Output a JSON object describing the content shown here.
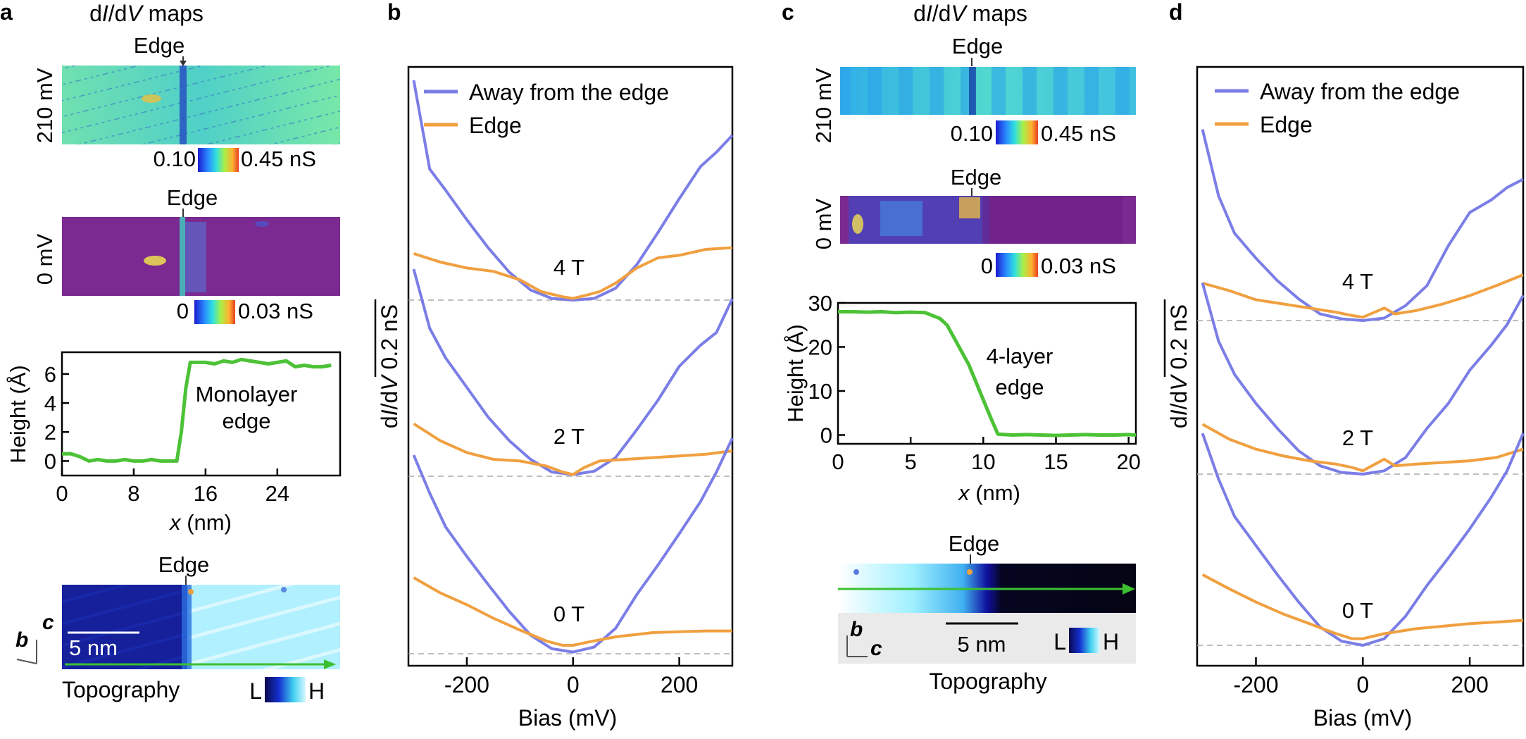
{
  "panel_letters": {
    "a": "a",
    "b": "b",
    "c": "c",
    "d": "d"
  },
  "maps_title": {
    "pre": "d",
    "I1": "I",
    "mid": "/d",
    "V": "V",
    "post": " maps"
  },
  "edge_label": "Edge",
  "panel_a": {
    "map1": {
      "bias_label": "210 mV",
      "cbar_min": "0.10",
      "cbar_max": "0.45 nS"
    },
    "map2": {
      "bias_label": "0 mV",
      "cbar_min": "0",
      "cbar_max": "0.03 nS"
    },
    "height_plot": {
      "ylabel": "Height (Å)",
      "xlabel_var": "x",
      "xlabel_unit": " (nm)",
      "yticks": [
        "0",
        "2",
        "4",
        "6"
      ],
      "xticks": [
        "0",
        "8",
        "16",
        "24"
      ],
      "annotation": [
        "Monolayer",
        "edge"
      ]
    },
    "topo": {
      "scale": "5 nm",
      "axis_b": "b",
      "axis_c": "c",
      "title": "Topography",
      "cbar_L": "L",
      "cbar_H": "H"
    }
  },
  "panel_c": {
    "map1": {
      "bias_label": "210 mV",
      "cbar_min": "0.10",
      "cbar_max": "0.45 nS"
    },
    "map2": {
      "bias_label": "0 mV",
      "cbar_min": "0",
      "cbar_max": "0.03 nS"
    },
    "height_plot": {
      "ylabel": "Height (Å)",
      "xlabel_var": "x",
      "xlabel_unit": " (nm)",
      "yticks": [
        "0",
        "10",
        "20",
        "30"
      ],
      "xticks": [
        "0",
        "5",
        "10",
        "15",
        "20"
      ],
      "annotation": [
        "4-layer",
        "edge"
      ]
    },
    "topo": {
      "scale": "5 nm",
      "axis_b": "b",
      "axis_c": "c",
      "title": "Topography",
      "cbar_L": "L",
      "cbar_H": "H"
    }
  },
  "spectra": {
    "legend": [
      "Away from the edge",
      "Edge"
    ],
    "ylabel": {
      "d": "d",
      "I": "I",
      "mid": "/d",
      "V": "V",
      "scale": " 0.2 nS"
    },
    "xlabel": "Bias (mV)",
    "xticks": [
      "-200",
      "0",
      "200"
    ],
    "field_labels": [
      "4 T",
      "2 T",
      "0 T"
    ],
    "colors": {
      "away": "#7b7ee6",
      "edge": "#f0a040"
    }
  },
  "chart_data": [
    {
      "type": "line",
      "panel": "a",
      "ylabel": "Height (Å)",
      "xlabel": "x (nm)",
      "xlim": [
        0,
        31
      ],
      "ylim": [
        -1,
        7.5
      ],
      "series": [
        {
          "x": [
            0,
            1,
            2,
            3,
            4,
            5,
            6,
            7,
            8,
            9,
            10,
            11,
            12,
            12.8,
            13.3,
            13.8,
            14.3,
            15,
            16,
            17,
            18,
            19,
            20,
            21,
            22,
            23,
            24,
            25,
            26,
            27,
            28,
            29,
            30
          ],
          "y": [
            0.5,
            0.5,
            0.3,
            0,
            0.1,
            0,
            0,
            0.1,
            0,
            0,
            0.1,
            0,
            0,
            0,
            2,
            5,
            6.8,
            6.8,
            6.8,
            6.7,
            6.9,
            6.8,
            7,
            6.9,
            6.8,
            6.7,
            6.8,
            6.9,
            6.5,
            6.6,
            6.5,
            6.5,
            6.6
          ]
        }
      ]
    },
    {
      "type": "line",
      "panel": "c",
      "ylabel": "Height (Å)",
      "xlabel": "x (nm)",
      "xlim": [
        0,
        20.5
      ],
      "ylim": [
        -2,
        30
      ],
      "series": [
        {
          "x": [
            0,
            1,
            2,
            3,
            4,
            5,
            6,
            7,
            7.5,
            8,
            8.5,
            9,
            9.5,
            10,
            10.5,
            11,
            12,
            13,
            14,
            15,
            16,
            17,
            18,
            19,
            20,
            20.5
          ],
          "y": [
            28,
            28,
            27.9,
            28,
            27.8,
            27.9,
            27.8,
            26.5,
            25,
            22,
            19,
            16,
            12,
            8,
            4,
            0.2,
            0,
            0.1,
            0,
            -0.1,
            0,
            0.1,
            0,
            0,
            0.1,
            0
          ]
        }
      ]
    },
    {
      "type": "line",
      "panel": "b",
      "xlabel": "Bias (mV)",
      "xlim": [
        -310,
        300
      ],
      "series": [
        {
          "name": "Away from the edge",
          "field": "4 T",
          "x": [
            -300,
            -270,
            -240,
            -200,
            -160,
            -120,
            -80,
            -40,
            0,
            40,
            80,
            120,
            160,
            200,
            240,
            270,
            300
          ],
          "y": [
            2.6,
            1.55,
            1.3,
            0.95,
            0.62,
            0.33,
            0.12,
            0.02,
            0,
            0.02,
            0.14,
            0.42,
            0.8,
            1.2,
            1.58,
            1.75,
            1.95
          ]
        },
        {
          "name": "Edge",
          "field": "4 T",
          "x": [
            -300,
            -250,
            -200,
            -150,
            -100,
            -60,
            -20,
            0,
            20,
            50,
            80,
            120,
            160,
            200,
            250,
            300
          ],
          "y": [
            0.55,
            0.45,
            0.38,
            0.34,
            0.24,
            0.1,
            0.04,
            0.02,
            0.05,
            0.1,
            0.2,
            0.38,
            0.5,
            0.53,
            0.6,
            0.62
          ]
        },
        {
          "name": "Away from the edge",
          "field": "2 T",
          "x": [
            -300,
            -270,
            -240,
            -200,
            -160,
            -120,
            -80,
            -40,
            0,
            40,
            80,
            120,
            160,
            200,
            240,
            270,
            300
          ],
          "y": [
            2.45,
            1.75,
            1.4,
            1.05,
            0.7,
            0.42,
            0.2,
            0.05,
            0.02,
            0.06,
            0.22,
            0.55,
            0.9,
            1.3,
            1.55,
            1.7,
            2.1
          ]
        },
        {
          "name": "Edge",
          "field": "2 T",
          "x": [
            -300,
            -250,
            -200,
            -150,
            -100,
            -50,
            -20,
            0,
            20,
            50,
            100,
            150,
            200,
            250,
            300
          ],
          "y": [
            0.62,
            0.42,
            0.28,
            0.2,
            0.18,
            0.12,
            0.05,
            0.02,
            0.1,
            0.18,
            0.2,
            0.22,
            0.24,
            0.26,
            0.3
          ]
        },
        {
          "name": "Away from the edge",
          "field": "0 T",
          "x": [
            -300,
            -270,
            -240,
            -200,
            -160,
            -120,
            -80,
            -40,
            0,
            40,
            80,
            120,
            160,
            200,
            240,
            270,
            300
          ],
          "y": [
            2.35,
            1.9,
            1.5,
            1.15,
            0.82,
            0.5,
            0.22,
            0.06,
            0.02,
            0.08,
            0.3,
            0.7,
            1.05,
            1.42,
            1.8,
            2.15,
            2.55
          ]
        },
        {
          "name": "Edge",
          "field": "0 T",
          "x": [
            -300,
            -250,
            -200,
            -150,
            -100,
            -50,
            -20,
            0,
            30,
            80,
            150,
            200,
            250,
            300
          ],
          "y": [
            0.9,
            0.72,
            0.58,
            0.42,
            0.28,
            0.15,
            0.1,
            0.1,
            0.14,
            0.2,
            0.25,
            0.26,
            0.27,
            0.27
          ]
        }
      ]
    },
    {
      "type": "line",
      "panel": "d",
      "xlabel": "Bias (mV)",
      "xlim": [
        -310,
        300
      ],
      "series": [
        {
          "name": "Away from the edge",
          "field": "4 T",
          "x": [
            -300,
            -270,
            -240,
            -200,
            -160,
            -120,
            -80,
            -40,
            0,
            40,
            80,
            120,
            160,
            200,
            240,
            270,
            300
          ],
          "y": [
            2.3,
            1.5,
            1.05,
            0.75,
            0.48,
            0.26,
            0.08,
            0.02,
            0,
            0.03,
            0.18,
            0.42,
            0.9,
            1.3,
            1.45,
            1.6,
            1.7
          ]
        },
        {
          "name": "Edge",
          "field": "4 T",
          "x": [
            -300,
            -250,
            -200,
            -150,
            -100,
            -50,
            -20,
            0,
            40,
            60,
            100,
            150,
            200,
            250,
            300
          ],
          "y": [
            0.45,
            0.36,
            0.25,
            0.2,
            0.15,
            0.1,
            0.06,
            0.04,
            0.15,
            0.08,
            0.12,
            0.2,
            0.3,
            0.42,
            0.55
          ]
        },
        {
          "name": "Away from the edge",
          "field": "2 T",
          "x": [
            -300,
            -270,
            -240,
            -200,
            -160,
            -120,
            -80,
            -40,
            0,
            40,
            80,
            120,
            160,
            200,
            240,
            270,
            300
          ],
          "y": [
            2.3,
            1.6,
            1.2,
            0.85,
            0.55,
            0.28,
            0.1,
            0.02,
            0,
            0.04,
            0.2,
            0.55,
            0.85,
            1.25,
            1.55,
            1.8,
            2.15
          ]
        },
        {
          "name": "Edge",
          "field": "2 T",
          "x": [
            -300,
            -250,
            -200,
            -150,
            -100,
            -50,
            -20,
            0,
            40,
            60,
            100,
            150,
            200,
            250,
            300
          ],
          "y": [
            0.6,
            0.42,
            0.3,
            0.22,
            0.16,
            0.12,
            0.08,
            0.04,
            0.18,
            0.1,
            0.12,
            0.14,
            0.16,
            0.2,
            0.3
          ]
        },
        {
          "name": "Away from the edge",
          "field": "0 T",
          "x": [
            -300,
            -270,
            -240,
            -200,
            -160,
            -120,
            -80,
            -40,
            0,
            40,
            80,
            120,
            160,
            200,
            240,
            270,
            300
          ],
          "y": [
            2.55,
            2.0,
            1.55,
            1.2,
            0.85,
            0.52,
            0.22,
            0.05,
            0,
            0.08,
            0.35,
            0.72,
            1.05,
            1.4,
            1.78,
            2.1,
            2.55
          ]
        },
        {
          "name": "Edge",
          "field": "0 T",
          "x": [
            -300,
            -250,
            -200,
            -150,
            -100,
            -50,
            -20,
            0,
            40,
            100,
            150,
            200,
            250,
            300
          ],
          "y": [
            0.85,
            0.68,
            0.52,
            0.38,
            0.26,
            0.14,
            0.08,
            0.08,
            0.14,
            0.2,
            0.23,
            0.26,
            0.28,
            0.3
          ]
        }
      ]
    }
  ]
}
